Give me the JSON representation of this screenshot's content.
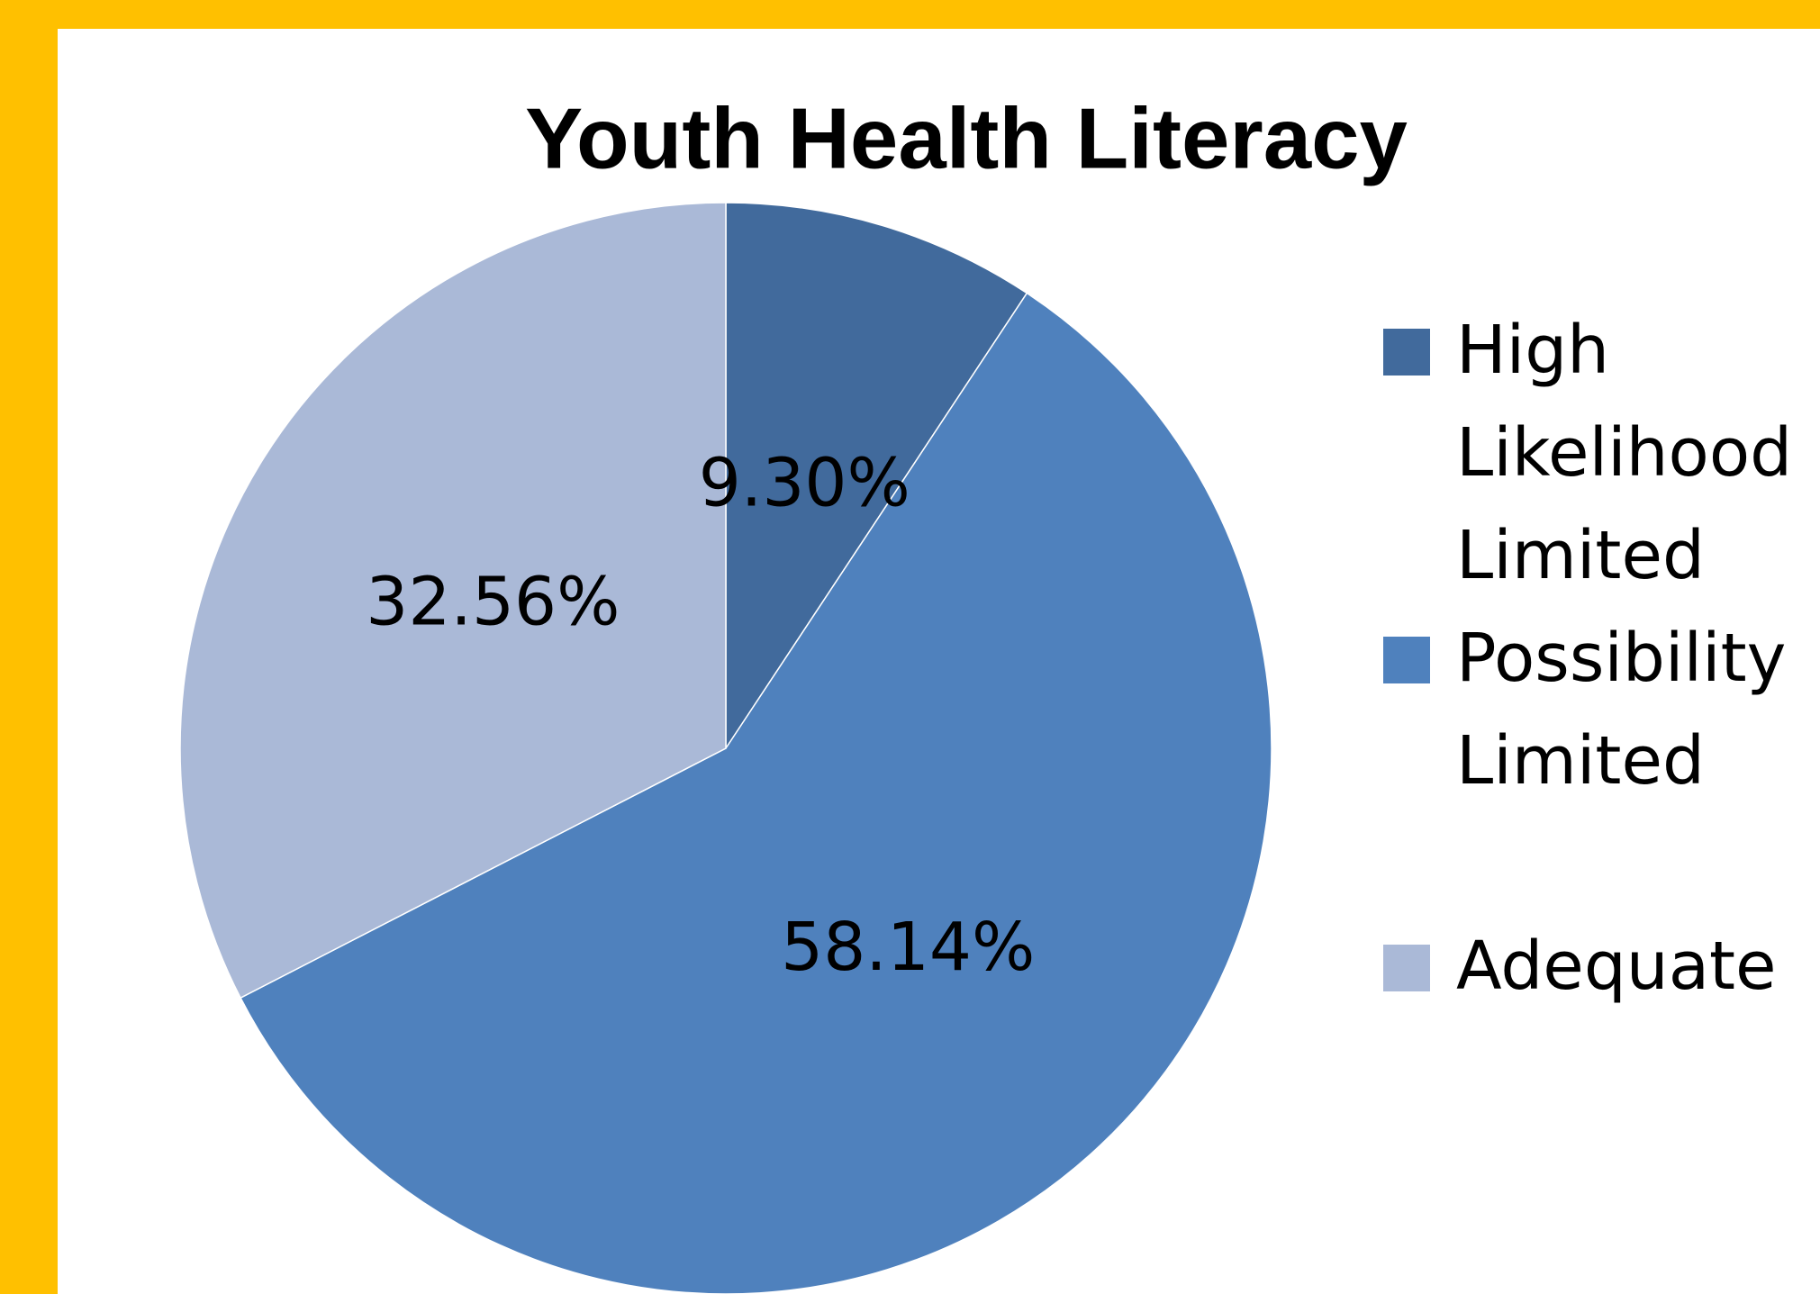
{
  "chart_data": {
    "type": "pie",
    "title": "Youth Health Literacy",
    "categories": [
      "High Likelihood Limited",
      "Possibility Limited",
      "Adequate"
    ],
    "values": [
      9.3,
      58.14,
      32.56
    ],
    "value_labels": [
      "9.30%",
      "58.14%",
      "32.56%"
    ],
    "colors": [
      "#416a9c",
      "#4f81bd",
      "#aab9d7"
    ],
    "legend": "right"
  }
}
